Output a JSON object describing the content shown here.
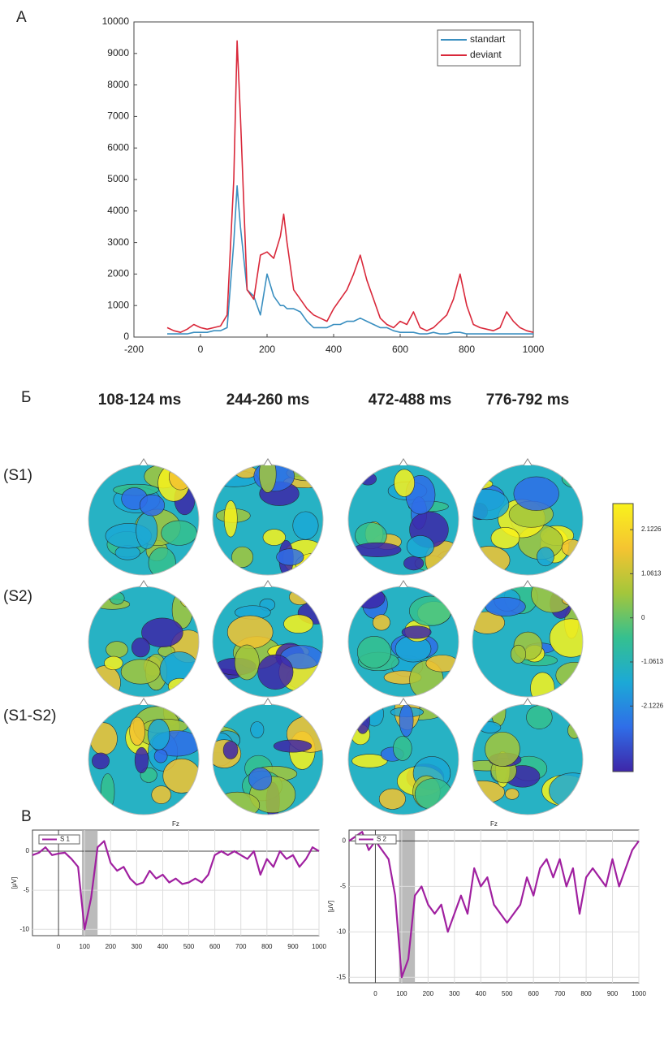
{
  "panels": {
    "a": "A",
    "b": "Б",
    "c": "B"
  },
  "topomaps": {
    "columns": [
      "108-124 ms",
      "244-260 ms",
      "472-488 ms",
      "776-792 ms"
    ],
    "rows": [
      "(S1)",
      "(S2)",
      "(S1-S2)"
    ],
    "colorbar": {
      "clim": [
        -3.7,
        2.75
      ],
      "ticks": [
        2.1226,
        1.0613,
        0,
        -1.0613,
        -2.1226
      ]
    }
  },
  "chart_data": [
    {
      "type": "line",
      "x": [
        -100,
        -80,
        -60,
        -40,
        -20,
        0,
        20,
        40,
        60,
        80,
        100,
        110,
        120,
        140,
        160,
        180,
        200,
        220,
        240,
        250,
        260,
        280,
        300,
        320,
        340,
        360,
        380,
        400,
        420,
        440,
        460,
        480,
        500,
        520,
        540,
        560,
        580,
        600,
        620,
        640,
        660,
        680,
        700,
        720,
        740,
        760,
        780,
        800,
        820,
        840,
        860,
        880,
        900,
        920,
        940,
        960,
        980,
        1000
      ],
      "series": [
        {
          "name": "standart",
          "color": "#3a8fc0",
          "values": [
            100,
            100,
            100,
            100,
            150,
            150,
            150,
            200,
            200,
            300,
            3000,
            4800,
            3500,
            1500,
            1300,
            700,
            2000,
            1300,
            1000,
            1000,
            900,
            900,
            800,
            500,
            300,
            300,
            300,
            400,
            400,
            500,
            500,
            600,
            500,
            400,
            300,
            300,
            200,
            150,
            150,
            150,
            100,
            100,
            150,
            100,
            100,
            150,
            150,
            100,
            100,
            100,
            100,
            100,
            100,
            100,
            100,
            100,
            100,
            100
          ]
        },
        {
          "name": "deviant",
          "color": "#d9283a",
          "values": [
            300,
            200,
            150,
            250,
            400,
            300,
            250,
            300,
            350,
            700,
            5000,
            9400,
            7000,
            1500,
            1200,
            2600,
            2700,
            2500,
            3200,
            3900,
            3000,
            1500,
            1200,
            900,
            700,
            600,
            500,
            900,
            1200,
            1500,
            2000,
            2600,
            1800,
            1200,
            600,
            400,
            300,
            500,
            400,
            800,
            300,
            200,
            300,
            500,
            700,
            1200,
            2000,
            1000,
            400,
            300,
            250,
            200,
            300,
            800,
            500,
            300,
            200,
            150
          ]
        }
      ],
      "xlim": [
        -200,
        1000
      ],
      "xticks": [
        -200,
        0,
        200,
        400,
        600,
        800,
        1000
      ],
      "ylim": [
        0,
        10000
      ],
      "yticks": [
        0,
        1000,
        2000,
        3000,
        4000,
        5000,
        6000,
        7000,
        8000,
        9000,
        10000
      ],
      "grid": false,
      "legend": "top-right"
    },
    {
      "type": "line",
      "title": "Fz",
      "y_label": "[μV]",
      "highlight": [
        90,
        150
      ],
      "x": [
        -100,
        -75,
        -50,
        -25,
        0,
        25,
        50,
        75,
        100,
        125,
        150,
        175,
        200,
        225,
        250,
        275,
        300,
        325,
        350,
        375,
        400,
        425,
        450,
        475,
        500,
        525,
        550,
        575,
        600,
        625,
        650,
        675,
        700,
        725,
        750,
        775,
        800,
        825,
        850,
        875,
        900,
        925,
        950,
        975,
        1000
      ],
      "series": [
        {
          "name": "S 1",
          "color": "#a020a0",
          "values": [
            -0.5,
            -0.2,
            0.5,
            -0.5,
            -0.3,
            -0.2,
            -1,
            -2,
            -10,
            -6,
            0.5,
            1.3,
            -1.5,
            -2.5,
            -2,
            -3.5,
            -4.3,
            -4,
            -2.5,
            -3.5,
            -3,
            -4,
            -3.5,
            -4.2,
            -4,
            -3.5,
            -4,
            -3,
            -0.5,
            0,
            -0.5,
            0,
            -0.5,
            -1,
            0,
            -3,
            -1,
            -2,
            0,
            -1,
            -0.5,
            -2,
            -1,
            0.5,
            0
          ]
        }
      ],
      "xlim": [
        -100,
        1000
      ],
      "xticks": [
        0,
        100,
        200,
        300,
        400,
        500,
        600,
        700,
        800,
        900,
        1000
      ],
      "ylim": [
        -10.8,
        2.7
      ],
      "yticks": [
        0,
        -5,
        -10
      ],
      "grid": true,
      "legend": "top-left"
    },
    {
      "type": "line",
      "title": "Fz",
      "y_label": "[μV]",
      "highlight": [
        90,
        150
      ],
      "x": [
        -100,
        -75,
        -50,
        -25,
        0,
        25,
        50,
        75,
        100,
        125,
        150,
        175,
        200,
        225,
        250,
        275,
        300,
        325,
        350,
        375,
        400,
        425,
        450,
        475,
        500,
        525,
        550,
        575,
        600,
        625,
        650,
        675,
        700,
        725,
        750,
        775,
        800,
        825,
        850,
        875,
        900,
        925,
        950,
        975,
        1000
      ],
      "series": [
        {
          "name": "S 2",
          "color": "#a020a0",
          "values": [
            0,
            0.5,
            1,
            -1,
            0,
            -1,
            -2,
            -6,
            -15,
            -13,
            -6,
            -5,
            -7,
            -8,
            -7,
            -10,
            -8,
            -6,
            -8,
            -3,
            -5,
            -4,
            -7,
            -8,
            -9,
            -8,
            -7,
            -4,
            -6,
            -3,
            -2,
            -4,
            -2,
            -5,
            -3,
            -8,
            -4,
            -3,
            -4,
            -5,
            -2,
            -5,
            -3,
            -1,
            0
          ]
        }
      ],
      "xlim": [
        -100,
        1000
      ],
      "xticks": [
        0,
        100,
        200,
        300,
        400,
        500,
        600,
        700,
        800,
        900,
        1000
      ],
      "ylim": [
        -15.6,
        1.2
      ],
      "yticks": [
        0,
        -5,
        -10,
        -15
      ],
      "grid": true,
      "legend": "top-left"
    }
  ]
}
